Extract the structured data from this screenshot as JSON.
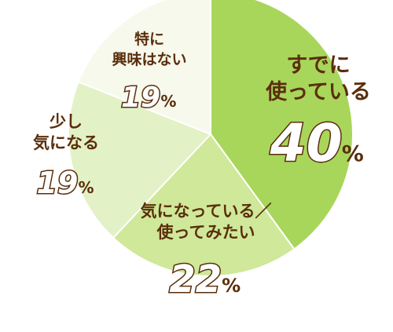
{
  "chart_data": {
    "type": "pie",
    "slices": [
      {
        "label_lines": [
          "すでに",
          "使っている"
        ],
        "value": 40,
        "unit": "%",
        "color": "#a8d65b"
      },
      {
        "label_lines": [
          "気になっている／",
          "使ってみたい"
        ],
        "value": 22,
        "unit": "%",
        "color": "#cfe899"
      },
      {
        "label_lines": [
          "少し",
          "気になる"
        ],
        "value": 19,
        "unit": "%",
        "color": "#e3f1c6"
      },
      {
        "label_lines": [
          "特に",
          "興味はない"
        ],
        "value": 19,
        "unit": "%",
        "color": "#f6f9ec"
      }
    ],
    "start_at": "12 o'clock",
    "direction": "clockwise"
  }
}
